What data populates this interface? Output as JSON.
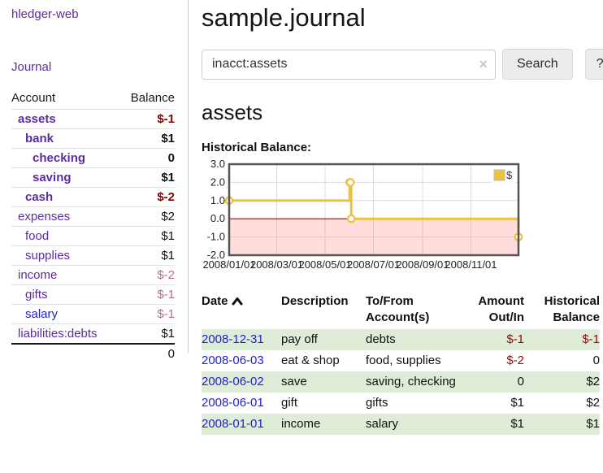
{
  "app": {
    "title": "hledger-web"
  },
  "sidebar": {
    "journal_link": "Journal",
    "table": {
      "account_header": "Account",
      "balance_header": "Balance",
      "rows": [
        {
          "account": "assets",
          "balance": "$-1",
          "level": 1,
          "bold": true,
          "balance_style": "neg-bold"
        },
        {
          "account": "bank",
          "balance": "$1",
          "level": 2,
          "bold": true,
          "balance_style": "bold"
        },
        {
          "account": "checking",
          "balance": "0",
          "level": 3,
          "bold": true,
          "balance_style": "bold"
        },
        {
          "account": "saving",
          "balance": "$1",
          "level": 3,
          "bold": true,
          "balance_style": "bold"
        },
        {
          "account": "cash",
          "balance": "$-2",
          "level": 2,
          "bold": true,
          "balance_style": "neg-bold"
        },
        {
          "account": "expenses",
          "balance": "$2",
          "level": 1,
          "bold": false,
          "balance_style": ""
        },
        {
          "account": "food",
          "balance": "$1",
          "level": 2,
          "bold": false,
          "balance_style": ""
        },
        {
          "account": "supplies",
          "balance": "$1",
          "level": 2,
          "bold": false,
          "balance_style": ""
        },
        {
          "account": "income",
          "balance": "$-2",
          "level": 1,
          "bold": false,
          "balance_style": "neg-muted"
        },
        {
          "account": "gifts",
          "balance": "$-1",
          "level": 2,
          "bold": false,
          "balance_style": "neg-muted"
        },
        {
          "account": "salary",
          "balance": "$-1",
          "level": 2,
          "bold": false,
          "balance_style": "neg-muted",
          "link_style": "blue"
        },
        {
          "account": "liabilities:debts",
          "balance": "$1",
          "level": 1,
          "bold": false,
          "balance_style": ""
        }
      ],
      "total": "0"
    }
  },
  "main": {
    "title": "sample.journal",
    "search": {
      "value": "inacct:assets",
      "clear_icon": "×",
      "search_button": "Search",
      "help_button": "?"
    },
    "account_heading": "assets",
    "chart_label": "Historical Balance:"
  },
  "chart_data": {
    "type": "line",
    "title": "Historical Balance",
    "step": true,
    "series": [
      {
        "name": "$",
        "color": "#edc240",
        "points": [
          {
            "date": "2008-01-01",
            "value": 1
          },
          {
            "date": "2008-06-01",
            "value": 2
          },
          {
            "date": "2008-06-02",
            "value": 2
          },
          {
            "date": "2008-06-03",
            "value": 0
          },
          {
            "date": "2008-12-31",
            "value": -1
          }
        ]
      }
    ],
    "xlim": [
      "2008-01-01",
      "2008-12-31"
    ],
    "ylim": [
      -2,
      3
    ],
    "x_ticks": [
      "2008/01/01",
      "2008/03/01",
      "2008/05/01",
      "2008/07/01",
      "2008/09/01",
      "2008/11/01"
    ],
    "y_ticks": [
      "3.0",
      "2.0",
      "1.0",
      "0.0",
      "-1.0",
      "-2.0"
    ],
    "grid": true,
    "legend_position": "top-right",
    "legend_label": "$",
    "colors": {
      "negative_fill": "rgba(255,130,130,0.27)",
      "zero_line": "#a40000",
      "grid_line": "#dcdcdc",
      "plot_border": "#545454",
      "marker_fill": "#ffffff"
    }
  },
  "register": {
    "headers": [
      {
        "label": "Date",
        "sorted": true,
        "align": "left"
      },
      {
        "label": "Description",
        "align": "left"
      },
      {
        "label": "To/From Account(s)",
        "align": "left"
      },
      {
        "label": "Amount Out/In",
        "align": "right"
      },
      {
        "label": "Historical Balance",
        "align": "right"
      }
    ],
    "rows": [
      {
        "date": "2008-12-31",
        "description": "pay off",
        "accounts": "debts",
        "amount": "$-1",
        "balance": "$-1",
        "amount_neg": true,
        "balance_neg": true
      },
      {
        "date": "2008-06-03",
        "description": "eat & shop",
        "accounts": "food, supplies",
        "amount": "$-2",
        "balance": "0",
        "amount_neg": true,
        "balance_neg": false
      },
      {
        "date": "2008-06-02",
        "description": "save",
        "accounts": "saving, checking",
        "amount": "0",
        "balance": "$2",
        "amount_neg": false,
        "balance_neg": false
      },
      {
        "date": "2008-06-01",
        "description": "gift",
        "accounts": "gifts",
        "amount": "$1",
        "balance": "$2",
        "amount_neg": false,
        "balance_neg": false
      },
      {
        "date": "2008-01-01",
        "description": "income",
        "accounts": "salary",
        "amount": "$1",
        "balance": "$1",
        "amount_neg": false,
        "balance_neg": false
      }
    ]
  }
}
